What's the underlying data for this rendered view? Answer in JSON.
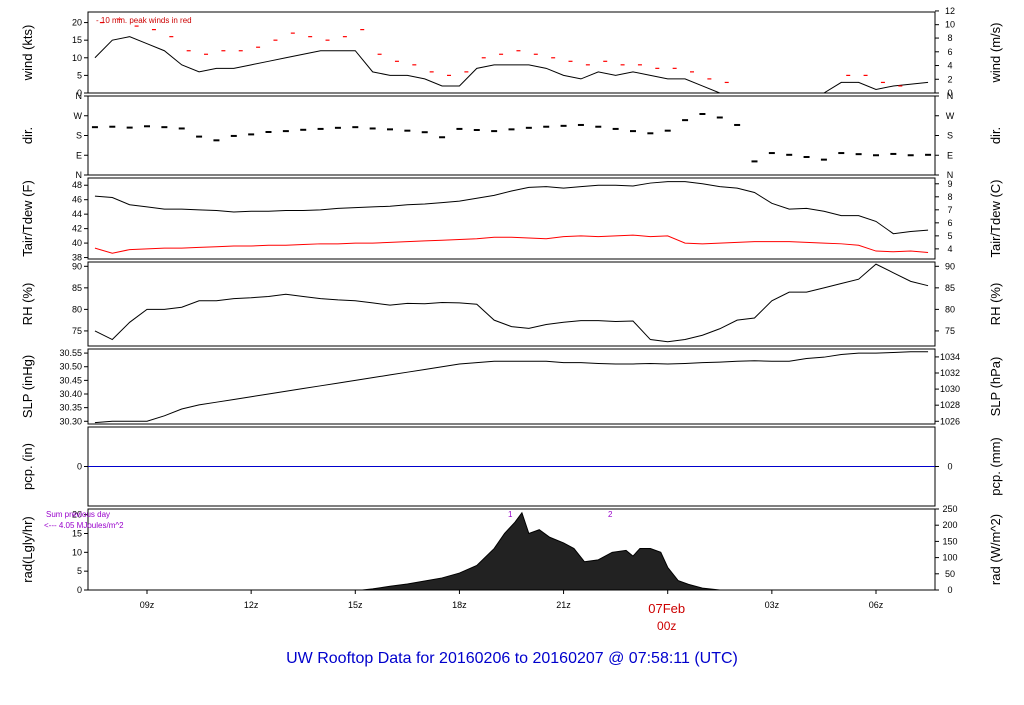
{
  "page_title": "UW Rooftop Data for 20160206  to  20160207 @ 07:58:11  (UTC)",
  "colors": {
    "ink": "#000000",
    "red": "#ff0000",
    "blue": "#0000cc",
    "purple": "#9900cc",
    "title": "#0000cc",
    "day": "#cc0000"
  },
  "chart_data": [
    {
      "id": "wind",
      "type": "line",
      "ylabel_left": "wind (kts)",
      "ylabel_right": "wind (m/s)",
      "annotation": "- 10 min. peak winds in red",
      "ylim": [
        0,
        23
      ],
      "yticks_left": [
        0,
        5,
        10,
        15,
        20
      ],
      "yticks_right": [
        {
          "v": 0,
          "l": "0"
        },
        {
          "v": 3.9,
          "l": "2"
        },
        {
          "v": 7.8,
          "l": "4"
        },
        {
          "v": 11.7,
          "l": "6"
        },
        {
          "v": 15.6,
          "l": "8"
        },
        {
          "v": 19.4,
          "l": "10"
        },
        {
          "v": 23.3,
          "l": "12"
        }
      ],
      "series": [
        {
          "role": "mean",
          "color": "#000000",
          "x": [
            7.5,
            8,
            8.5,
            9,
            9.5,
            10,
            10.5,
            11,
            11.5,
            12,
            12.5,
            13,
            13.5,
            14,
            14.5,
            15,
            15.5,
            16,
            16.5,
            17,
            17.5,
            18,
            18.5,
            19,
            19.5,
            20,
            20.5,
            21,
            21.5,
            22,
            22.5,
            23,
            23.5,
            24,
            24.5,
            25,
            25.5,
            26,
            26.5,
            27,
            27.5,
            28,
            28.5,
            29,
            29.5,
            30,
            30.5,
            31.5
          ],
          "y": [
            10,
            15,
            16,
            14,
            12,
            8,
            6,
            7,
            7,
            8,
            9,
            10,
            11,
            12,
            12,
            12,
            6,
            5,
            5,
            4,
            2,
            2,
            7,
            8,
            8,
            8,
            7,
            5,
            4,
            6,
            5,
            6,
            5,
            4,
            4,
            2,
            0,
            0,
            0,
            0,
            0,
            0,
            0,
            3,
            3,
            1,
            2,
            3
          ]
        },
        {
          "role": "peak",
          "color": "#ff0000",
          "x": [
            7.7,
            8.2,
            8.7,
            9.2,
            9.7,
            10.2,
            10.7,
            11.2,
            11.7,
            12.2,
            12.7,
            13.2,
            13.7,
            14.2,
            14.7,
            15.2,
            15.7,
            16.2,
            16.7,
            17.2,
            17.7,
            18.2,
            18.7,
            19.2,
            19.7,
            20.2,
            20.7,
            21.2,
            21.7,
            22.2,
            22.7,
            23.2,
            23.7,
            24.2,
            24.7,
            25.2,
            25.7,
            29.2,
            29.7,
            30.2,
            30.7
          ],
          "y": [
            20,
            21,
            19,
            18,
            16,
            12,
            11,
            12,
            12,
            13,
            15,
            17,
            16,
            15,
            16,
            18,
            11,
            9,
            8,
            6,
            5,
            6,
            10,
            11,
            12,
            11,
            10,
            9,
            8,
            9,
            8,
            8,
            7,
            7,
            6,
            4,
            3,
            5,
            5,
            3,
            2
          ]
        }
      ]
    },
    {
      "id": "dir",
      "type": "scatter",
      "ylabel_left": "dir.",
      "ylabel_right": "dir.",
      "ylim": [
        0,
        360
      ],
      "yticks_left": [
        {
          "v": 0,
          "l": "N"
        },
        {
          "v": 90,
          "l": "E"
        },
        {
          "v": 180,
          "l": "S"
        },
        {
          "v": 270,
          "l": "W"
        },
        {
          "v": 360,
          "l": "N"
        }
      ],
      "yticks_right": [
        {
          "v": 0,
          "l": "N"
        },
        {
          "v": 90,
          "l": "E"
        },
        {
          "v": 180,
          "l": "S"
        },
        {
          "v": 270,
          "l": "W"
        },
        {
          "v": 360,
          "l": "N"
        }
      ],
      "series": [
        {
          "role": "direction",
          "color": "#000000",
          "x": [
            7.5,
            8,
            8.5,
            9,
            9.5,
            10,
            10.5,
            11,
            11.5,
            12,
            12.5,
            13,
            13.5,
            14,
            14.5,
            15,
            15.5,
            16,
            16.5,
            17,
            17.5,
            18,
            18.5,
            19,
            19.5,
            20,
            20.5,
            21,
            21.5,
            22,
            22.5,
            23,
            23.5,
            24,
            24.5,
            25,
            25.5,
            26,
            26.5,
            27,
            27.5,
            28,
            28.5,
            29,
            29.5,
            30,
            30.5,
            31,
            31.5
          ],
          "y": [
            218,
            220,
            216,
            222,
            218,
            212,
            175,
            158,
            178,
            185,
            196,
            200,
            206,
            210,
            215,
            218,
            212,
            208,
            202,
            195,
            172,
            210,
            205,
            200,
            208,
            215,
            220,
            224,
            228,
            220,
            210,
            200,
            190,
            202,
            250,
            278,
            262,
            228,
            62,
            100,
            92,
            82,
            70,
            100,
            95,
            90,
            96,
            90,
            92
          ]
        }
      ]
    },
    {
      "id": "temp",
      "type": "line",
      "ylabel_left": "Tair/Tdew (F)",
      "ylabel_right": "Tair/Tdew (C)",
      "ylim": [
        37.8,
        49
      ],
      "yticks_left": [
        38,
        40,
        42,
        44,
        46,
        48
      ],
      "yticks_right": [
        {
          "v": 39.2,
          "l": "4"
        },
        {
          "v": 41,
          "l": "5"
        },
        {
          "v": 42.8,
          "l": "6"
        },
        {
          "v": 44.6,
          "l": "7"
        },
        {
          "v": 46.4,
          "l": "8"
        },
        {
          "v": 48.2,
          "l": "9"
        }
      ],
      "series": [
        {
          "role": "Tair",
          "color": "#000000",
          "x": [
            7.5,
            8,
            8.5,
            9,
            9.5,
            10,
            10.5,
            11,
            11.5,
            12,
            12.5,
            13,
            13.5,
            14,
            14.5,
            15,
            15.5,
            16,
            16.5,
            17,
            17.5,
            18,
            18.5,
            19,
            19.5,
            20,
            20.5,
            21,
            21.5,
            22,
            22.5,
            23,
            23.5,
            24,
            24.5,
            25,
            25.5,
            26,
            26.5,
            27,
            27.5,
            28,
            28.5,
            29,
            29.5,
            30,
            30.5,
            31,
            31.5
          ],
          "y": [
            46.5,
            46.3,
            45.3,
            45,
            44.7,
            44.7,
            44.6,
            44.5,
            44.3,
            44.4,
            44.4,
            44.5,
            44.5,
            44.6,
            44.8,
            44.9,
            45,
            45.1,
            45.3,
            45.4,
            45.6,
            45.8,
            46.2,
            46.6,
            47.2,
            47.7,
            47.8,
            47.6,
            47.8,
            48,
            48,
            47.9,
            48.3,
            48.5,
            48.5,
            48.2,
            47.8,
            47.6,
            47,
            45.5,
            44.7,
            44.8,
            44.4,
            43.8,
            43.8,
            43,
            41.3,
            41.6,
            41.8
          ]
        },
        {
          "role": "Tdew",
          "color": "#ff0000",
          "x": [
            7.5,
            8,
            8.5,
            9,
            9.5,
            10,
            10.5,
            11,
            11.5,
            12,
            12.5,
            13,
            13.5,
            14,
            14.5,
            15,
            15.5,
            16,
            16.5,
            17,
            17.5,
            18,
            18.5,
            19,
            19.5,
            20,
            20.5,
            21,
            21.5,
            22,
            22.5,
            23,
            23.5,
            24,
            24.5,
            25,
            25.5,
            26,
            26.5,
            27,
            27.5,
            28,
            28.5,
            29,
            29.5,
            30,
            30.5,
            31,
            31.5
          ],
          "y": [
            39.3,
            38.6,
            39.1,
            39.2,
            39.3,
            39.3,
            39.4,
            39.5,
            39.6,
            39.6,
            39.7,
            39.7,
            39.8,
            39.9,
            39.9,
            40,
            40,
            40.1,
            40.2,
            40.3,
            40.4,
            40.5,
            40.6,
            40.8,
            40.8,
            40.7,
            40.6,
            40.9,
            41,
            40.9,
            41,
            41.1,
            40.9,
            41,
            40,
            39.9,
            40,
            40.1,
            40.2,
            40.2,
            40.2,
            40.1,
            40,
            39.9,
            39.7,
            38.9,
            38.8,
            38.9,
            38.7
          ]
        }
      ]
    },
    {
      "id": "rh",
      "type": "line",
      "ylabel_left": "RH (%)",
      "ylabel_right": "RH (%)",
      "ylim": [
        71.5,
        91
      ],
      "yticks_left": [
        75,
        80,
        85,
        90
      ],
      "yticks_right": [
        {
          "v": 75,
          "l": "75"
        },
        {
          "v": 80,
          "l": "80"
        },
        {
          "v": 85,
          "l": "85"
        },
        {
          "v": 90,
          "l": "90"
        }
      ],
      "series": [
        {
          "role": "RH",
          "color": "#000000",
          "x": [
            7.5,
            8,
            8.5,
            9,
            9.5,
            10,
            10.5,
            11,
            11.5,
            12,
            12.5,
            13,
            13.5,
            14,
            14.5,
            15,
            15.5,
            16,
            16.5,
            17,
            17.5,
            18,
            18.5,
            19,
            19.5,
            20,
            20.5,
            21,
            21.5,
            22,
            22.5,
            23,
            23.5,
            24,
            24.5,
            25,
            25.5,
            26,
            26.5,
            27,
            27.5,
            28,
            28.5,
            29,
            29.5,
            30,
            30.5,
            31,
            31.5
          ],
          "y": [
            75,
            73,
            77,
            80,
            80,
            80.5,
            82,
            82,
            82.5,
            82.7,
            83,
            83.5,
            83,
            82.5,
            82.2,
            82,
            81.5,
            81,
            81.4,
            81.3,
            81.6,
            81.5,
            81.2,
            77.5,
            76,
            75.6,
            76.5,
            77,
            77.4,
            77.4,
            77.2,
            77.3,
            73,
            72.5,
            73,
            74,
            75.5,
            77.5,
            78,
            82,
            84,
            84,
            85,
            86,
            87,
            90.5,
            88.5,
            86.5,
            85.5
          ]
        }
      ]
    },
    {
      "id": "slp",
      "type": "line",
      "ylabel_left": "SLP (inHg)",
      "ylabel_right": "SLP (hPa)",
      "ylim": [
        30.29,
        30.565
      ],
      "yticks_left": [
        {
          "v": 30.3,
          "l": "30.30"
        },
        {
          "v": 30.35,
          "l": "30.35"
        },
        {
          "v": 30.4,
          "l": "30.40"
        },
        {
          "v": 30.45,
          "l": "30.45"
        },
        {
          "v": 30.5,
          "l": "30.50"
        },
        {
          "v": 30.55,
          "l": "30.55"
        }
      ],
      "yticks_right": [
        {
          "v": 30.3,
          "l": "1026"
        },
        {
          "v": 30.359,
          "l": "1028"
        },
        {
          "v": 30.418,
          "l": "1030"
        },
        {
          "v": 30.477,
          "l": "1032"
        },
        {
          "v": 30.536,
          "l": "1034"
        }
      ],
      "series": [
        {
          "role": "SLP",
          "color": "#000000",
          "x": [
            7.5,
            8,
            8.5,
            9,
            9.5,
            10,
            10.5,
            11,
            11.5,
            12,
            12.5,
            13,
            13.5,
            14,
            14.5,
            15,
            15.5,
            16,
            16.5,
            17,
            17.5,
            18,
            18.5,
            19,
            19.5,
            20,
            20.5,
            21,
            21.5,
            22,
            22.5,
            23,
            23.5,
            24,
            24.5,
            25,
            25.5,
            26,
            26.5,
            27,
            27.5,
            28,
            28.5,
            29,
            29.5,
            30,
            30.5,
            31,
            31.5
          ],
          "y": [
            30.295,
            30.3,
            30.3,
            30.3,
            30.32,
            30.345,
            30.36,
            30.37,
            30.38,
            30.39,
            30.4,
            30.41,
            30.42,
            30.43,
            30.44,
            30.45,
            30.46,
            30.47,
            30.48,
            30.49,
            30.5,
            30.51,
            30.515,
            30.52,
            30.52,
            30.52,
            30.52,
            30.515,
            30.515,
            30.512,
            30.51,
            30.51,
            30.512,
            30.51,
            30.512,
            30.515,
            30.517,
            30.52,
            30.522,
            30.52,
            30.52,
            30.53,
            30.535,
            30.545,
            30.55,
            30.55,
            30.552,
            30.555,
            30.555
          ]
        }
      ]
    },
    {
      "id": "pcp",
      "type": "line",
      "ylabel_left": "pcp. (in)",
      "ylabel_right": "pcp. (mm)",
      "ylim": [
        -1,
        1
      ],
      "yticks_left": [
        {
          "v": 0,
          "l": "0"
        }
      ],
      "yticks_right": [
        {
          "v": 0,
          "l": "0"
        }
      ],
      "series": [
        {
          "role": "pcp",
          "color": "#0000cc",
          "x": [
            7.3,
            31.7
          ],
          "y": [
            0,
            0
          ]
        }
      ]
    },
    {
      "id": "rad",
      "type": "area",
      "ylabel_left": "rad(Lgly/hr)",
      "ylabel_right": "rad (W/m^2)",
      "annotations": [
        "Sum previous day",
        "<--- 4.05 MJoules/m^2",
        "1",
        "2"
      ],
      "ylim": [
        0,
        21.5
      ],
      "yticks_left": [
        0,
        5,
        10,
        15,
        20
      ],
      "yticks_right": [
        {
          "v": 0,
          "l": "0"
        },
        {
          "v": 4.3,
          "l": "50"
        },
        {
          "v": 8.6,
          "l": "100"
        },
        {
          "v": 12.9,
          "l": "150"
        },
        {
          "v": 17.2,
          "l": "200"
        },
        {
          "v": 21.5,
          "l": "250"
        }
      ],
      "series": [
        {
          "role": "radiation",
          "color": "#000000",
          "x": [
            15.2,
            15.5,
            16,
            16.5,
            17,
            17.5,
            18,
            18.5,
            19,
            19.3,
            19.6,
            19.8,
            20,
            20.3,
            20.6,
            21,
            21.3,
            21.6,
            22,
            22.4,
            22.8,
            23,
            23.2,
            23.5,
            23.8,
            24,
            24.3,
            24.6,
            25,
            25.5
          ],
          "y": [
            0,
            0.3,
            1,
            1.6,
            2.4,
            3.2,
            4.5,
            6.5,
            11,
            15,
            18,
            20.5,
            15,
            16,
            14,
            12.5,
            11,
            7.5,
            8,
            10,
            10.5,
            9,
            11,
            11,
            10,
            6,
            2.5,
            1.5,
            0.5,
            0
          ]
        }
      ],
      "xlabel_ticks": [
        {
          "v": 9,
          "l": "09z"
        },
        {
          "v": 12,
          "l": "12z"
        },
        {
          "v": 15,
          "l": "15z"
        },
        {
          "v": 18,
          "l": "18z"
        },
        {
          "v": 21,
          "l": "21z"
        },
        {
          "v": 24,
          "l": "00z"
        },
        {
          "v": 27,
          "l": "03z"
        },
        {
          "v": 30,
          "l": "06z"
        }
      ],
      "date_label": "07Feb"
    }
  ]
}
